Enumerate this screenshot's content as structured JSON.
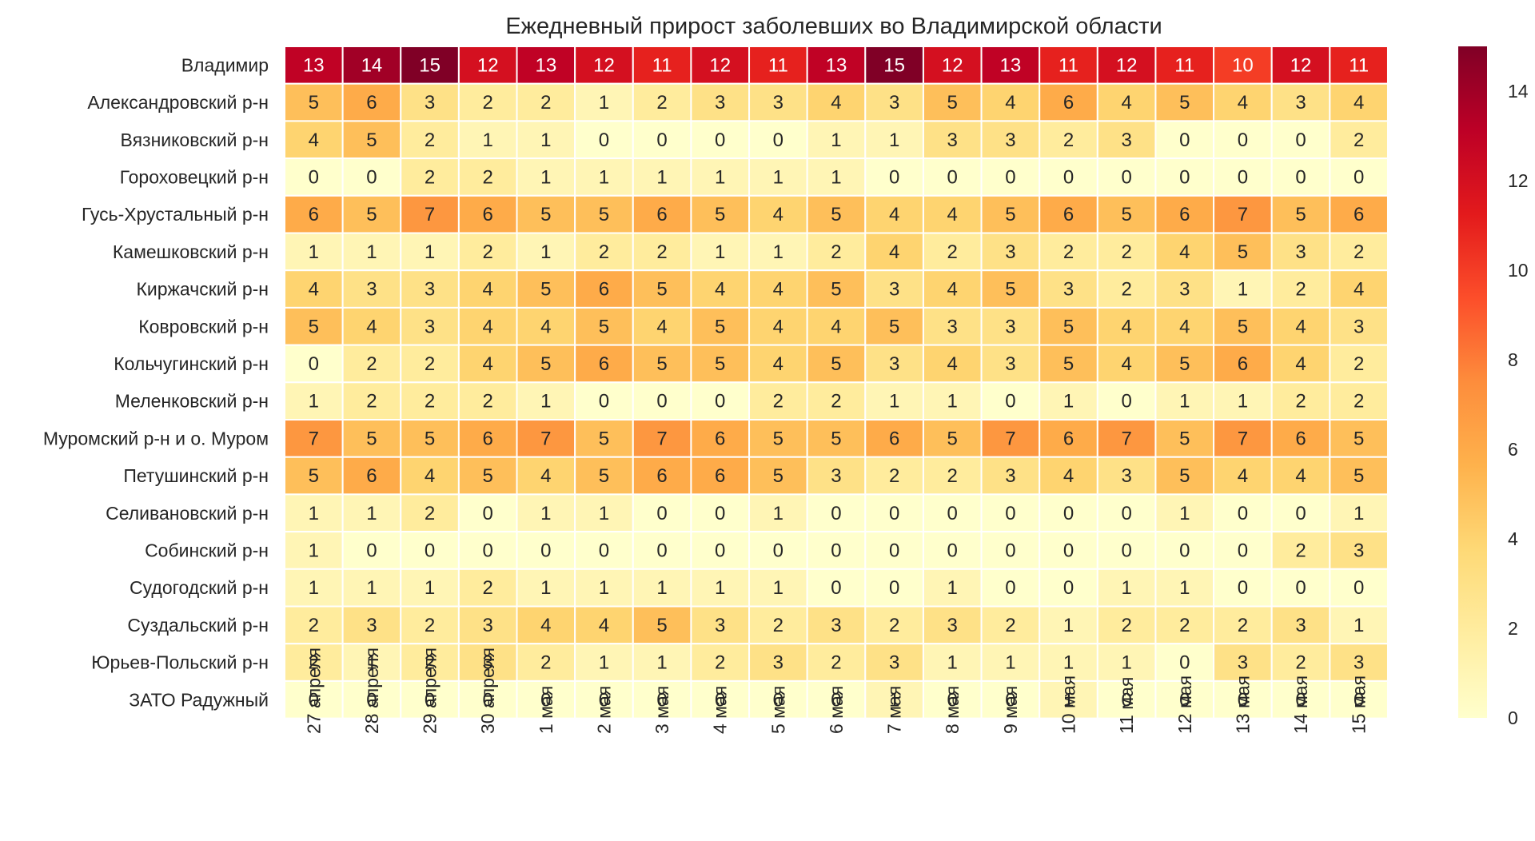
{
  "chart_data": {
    "type": "heatmap",
    "title": "Ежедневный прирост заболевших во Владимирской области",
    "rows": [
      "Владимир",
      "Александровский р-н",
      "Вязниковский р-н",
      "Гороховецкий р-н",
      "Гусь-Хрустальный р-н",
      "Камешковский р-н",
      "Киржачский р-н",
      "Ковровский р-н",
      "Кольчугинский р-н",
      "Меленковский р-н",
      "Муромский р-н и о. Муром",
      "Петушинский р-н",
      "Селивановский р-н",
      "Собинский р-н",
      "Судогодский р-н",
      "Суздальский р-н",
      "Юрьев-Польский р-н",
      "ЗАТО Радужный"
    ],
    "columns": [
      "27 апреля",
      "28 апреля",
      "29 апреля",
      "30 апреля",
      "1 мая",
      "2 мая",
      "3 мая",
      "4 мая",
      "5 мая",
      "6 мая",
      "7 мая",
      "8 мая",
      "9 мая",
      "10 мая",
      "11 мая",
      "12 мая",
      "13 мая",
      "14 мая",
      "15 мая"
    ],
    "values": [
      [
        13,
        14,
        15,
        12,
        13,
        12,
        11,
        12,
        11,
        13,
        15,
        12,
        13,
        11,
        12,
        11,
        10,
        12,
        11
      ],
      [
        5,
        6,
        3,
        2,
        2,
        1,
        2,
        3,
        3,
        4,
        3,
        5,
        4,
        6,
        4,
        5,
        4,
        3,
        4
      ],
      [
        4,
        5,
        2,
        1,
        1,
        0,
        0,
        0,
        0,
        1,
        1,
        3,
        3,
        2,
        3,
        0,
        0,
        0,
        2
      ],
      [
        0,
        0,
        2,
        2,
        1,
        1,
        1,
        1,
        1,
        1,
        0,
        0,
        0,
        0,
        0,
        0,
        0,
        0,
        0
      ],
      [
        6,
        5,
        7,
        6,
        5,
        5,
        6,
        5,
        4,
        5,
        4,
        4,
        5,
        6,
        5,
        6,
        7,
        5,
        6
      ],
      [
        1,
        1,
        1,
        2,
        1,
        2,
        2,
        1,
        1,
        2,
        4,
        2,
        3,
        2,
        2,
        4,
        5,
        3,
        2
      ],
      [
        4,
        3,
        3,
        4,
        5,
        6,
        5,
        4,
        4,
        5,
        3,
        4,
        5,
        3,
        2,
        3,
        1,
        2,
        4
      ],
      [
        5,
        4,
        3,
        4,
        4,
        5,
        4,
        5,
        4,
        4,
        5,
        3,
        3,
        5,
        4,
        4,
        5,
        4,
        3
      ],
      [
        0,
        2,
        2,
        4,
        5,
        6,
        5,
        5,
        4,
        5,
        3,
        4,
        3,
        5,
        4,
        5,
        6,
        4,
        2
      ],
      [
        1,
        2,
        2,
        2,
        1,
        0,
        0,
        0,
        2,
        2,
        1,
        1,
        0,
        1,
        0,
        1,
        1,
        2,
        2
      ],
      [
        7,
        5,
        5,
        6,
        7,
        5,
        7,
        6,
        5,
        5,
        6,
        5,
        7,
        6,
        7,
        5,
        7,
        6,
        5
      ],
      [
        5,
        6,
        4,
        5,
        4,
        5,
        6,
        6,
        5,
        3,
        2,
        2,
        3,
        4,
        3,
        5,
        4,
        4,
        5
      ],
      [
        1,
        1,
        2,
        0,
        1,
        1,
        0,
        0,
        1,
        0,
        0,
        0,
        0,
        0,
        0,
        1,
        0,
        0,
        1
      ],
      [
        1,
        0,
        0,
        0,
        0,
        0,
        0,
        0,
        0,
        0,
        0,
        0,
        0,
        0,
        0,
        0,
        0,
        2,
        3
      ],
      [
        1,
        1,
        1,
        2,
        1,
        1,
        1,
        1,
        1,
        0,
        0,
        1,
        0,
        0,
        1,
        1,
        0,
        0,
        0
      ],
      [
        2,
        3,
        2,
        3,
        4,
        4,
        5,
        3,
        2,
        3,
        2,
        3,
        2,
        1,
        2,
        2,
        2,
        3,
        1
      ],
      [
        2,
        1,
        2,
        3,
        2,
        1,
        1,
        2,
        3,
        2,
        3,
        1,
        1,
        1,
        1,
        0,
        3,
        2,
        3
      ],
      [
        0,
        0,
        0,
        0,
        0,
        0,
        0,
        0,
        0,
        0,
        1,
        0,
        0,
        1,
        0,
        0,
        0,
        0,
        0
      ]
    ],
    "vmin": 0,
    "vmax": 15,
    "colormap": "YlOrRd",
    "colorbar_ticks": [
      0,
      2,
      4,
      6,
      8,
      10,
      12,
      14
    ]
  }
}
